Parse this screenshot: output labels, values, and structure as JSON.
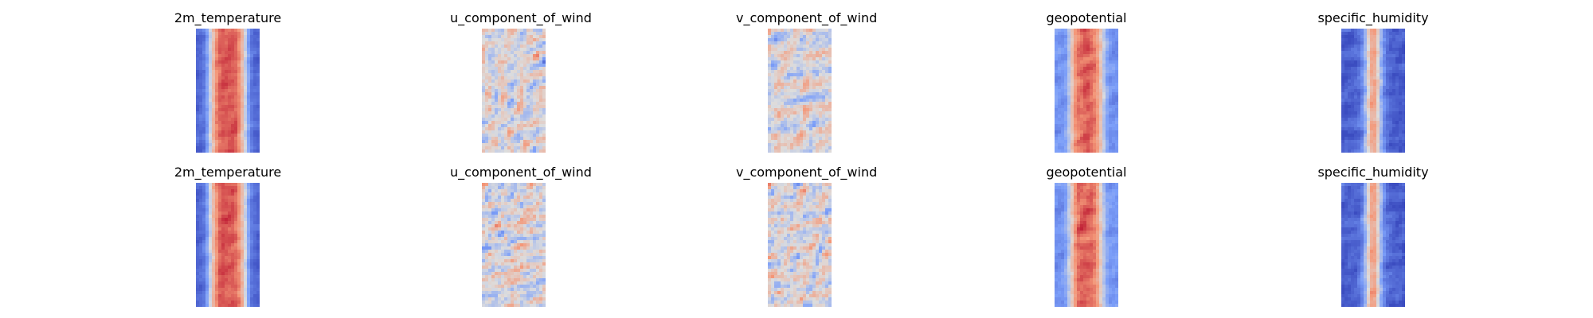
{
  "chart_data": {
    "type": "heatmap",
    "colormap": "coolwarm",
    "axes": "off",
    "grid": [
      2,
      5
    ],
    "rows": [
      {
        "panels": [
          {
            "title": "2m_temperature",
            "field": "temperature",
            "seed": 11
          },
          {
            "title": "u_component_of_wind",
            "field": "wind",
            "seed": 12
          },
          {
            "title": "v_component_of_wind",
            "field": "wind",
            "seed": 13
          },
          {
            "title": "geopotential",
            "field": "geopotential",
            "seed": 14
          },
          {
            "title": "specific_humidity",
            "field": "humidity",
            "seed": 15
          }
        ]
      },
      {
        "panels": [
          {
            "title": "2m_temperature",
            "field": "temperature",
            "seed": 21
          },
          {
            "title": "u_component_of_wind",
            "field": "wind",
            "seed": 22
          },
          {
            "title": "v_component_of_wind",
            "field": "wind",
            "seed": 23
          },
          {
            "title": "geopotential",
            "field": "geopotential",
            "seed": 24
          },
          {
            "title": "specific_humidity",
            "field": "humidity",
            "seed": 25
          }
        ]
      }
    ],
    "colors": {
      "cold": "#3b4cc0",
      "neutral": "#dddddd",
      "warm": "#b40426"
    }
  }
}
